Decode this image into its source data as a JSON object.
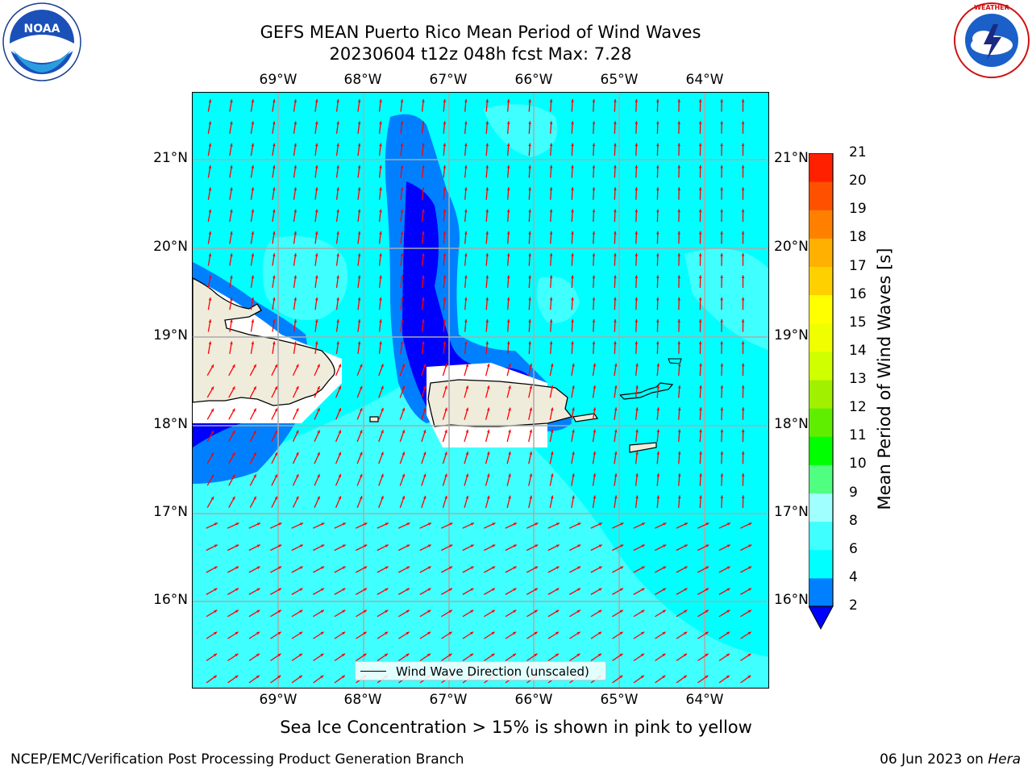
{
  "title": {
    "line1": "GEFS MEAN Puerto Rico Mean Period of Wind Waves",
    "line2": "20230604 t12z 048h fcst   Max: 7.28"
  },
  "map": {
    "lon_labels": [
      "69°W",
      "68°W",
      "67°W",
      "66°W",
      "65°W",
      "64°W"
    ],
    "lat_labels": [
      "21°N",
      "20°N",
      "19°N",
      "18°N",
      "17°N",
      "16°N"
    ],
    "legend_label": "Wind Wave Direction (unscaled)",
    "arrow_color": "#ff0000",
    "land_color": "#efecdc"
  },
  "colorbar": {
    "label": "Mean Period of Wind Waves [s]",
    "ticks": [
      "2",
      "4",
      "6",
      "8",
      "9",
      "10",
      "11",
      "12",
      "13",
      "14",
      "15",
      "16",
      "17",
      "18",
      "19",
      "20",
      "21"
    ],
    "colors": [
      "#0000ff",
      "#0080ff",
      "#00ffff",
      "#40ffff",
      "#a0ffff",
      "#50ff80",
      "#00ff00",
      "#60ee00",
      "#a0f000",
      "#d0ff00",
      "#f0ff00",
      "#ffff00",
      "#ffd000",
      "#ffb000",
      "#ff8000",
      "#ff5000",
      "#ff2000",
      "#ff0000"
    ]
  },
  "footnote": "Sea Ice Concentration > 15% is shown in pink to yellow",
  "credit": "NCEP/EMC/Verification Post Processing Product Generation Branch",
  "datestamp": {
    "date": "06 Jun 2023 on",
    "host": "Hera"
  },
  "logos": {
    "noaa": "NOAA",
    "nws": "NATIONAL WEATHER SERVICE"
  }
}
